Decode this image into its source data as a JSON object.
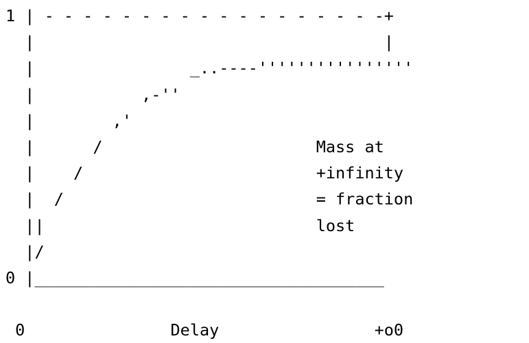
{
  "figure": {
    "lines": [
      "1 | - - - - - - - - - - - - - - - - - -+",
      "  |                                    |",
      "  |                _..----''''''''''''''''",
      "  |           ,-''",
      "  |        ,'",
      "  |      /                      Mass at",
      "  |    /                        +infinity",
      "  |  /                          = fraction",
      "  ||                            lost",
      "  |/",
      "0 |____________________________________",
      "",
      " 0               Delay                +o0"
    ]
  }
}
